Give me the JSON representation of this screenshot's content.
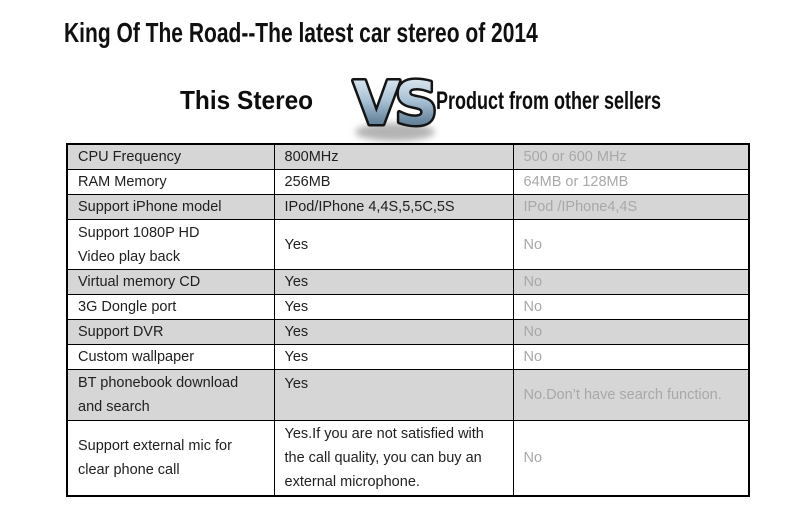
{
  "title": "King Of The Road--The latest car stereo of 2014",
  "versus": {
    "left": "This Stereo",
    "vs": "VS",
    "right": "Product from other sellers"
  },
  "table": {
    "rows": [
      {
        "feature": "CPU Frequency",
        "this_product": "800MHz",
        "others": "500 or 600 MHz"
      },
      {
        "feature": "RAM Memory",
        "this_product": "256MB",
        "others": "64MB or 128MB"
      },
      {
        "feature": "Support iPhone model",
        "this_product": "IPod/IPhone 4,4S,5,5C,5S",
        "others": "IPod /IPhone4,4S"
      },
      {
        "feature": "Support 1080P HD\nVideo play back",
        "this_product": "Yes",
        "others": "No"
      },
      {
        "feature": "Virtual memory CD",
        "this_product": "Yes",
        "others": "No"
      },
      {
        "feature": "3G Dongle port",
        "this_product": "Yes",
        "others": "No"
      },
      {
        "feature": "Support DVR",
        "this_product": "Yes",
        "others": "No"
      },
      {
        "feature": "Custom wallpaper",
        "this_product": "Yes",
        "others": "No"
      },
      {
        "feature": "BT phonebook download\nand search",
        "this_product": "Yes",
        "others": "No.Don’t have search function."
      },
      {
        "feature": "Support external mic for\nclear phone call",
        "this_product": "Yes.If you are not satisfied with\nthe call quality, you can buy an\nexternal microphone.",
        "others": "No"
      }
    ]
  },
  "colors": {
    "shaded_row_bg": "#d6d6d6",
    "others_text": "#a8a8a8",
    "text": "#1f1f1f",
    "border": "#000000",
    "vs_gradient_top": "#eef5fa",
    "vs_gradient_mid": "#a9c2d4",
    "vs_gradient_low": "#6d8ba3",
    "vs_gradient_bottom": "#4a687f",
    "vs_outline": "#141414",
    "vs_shadow": "#b4b4b4"
  }
}
